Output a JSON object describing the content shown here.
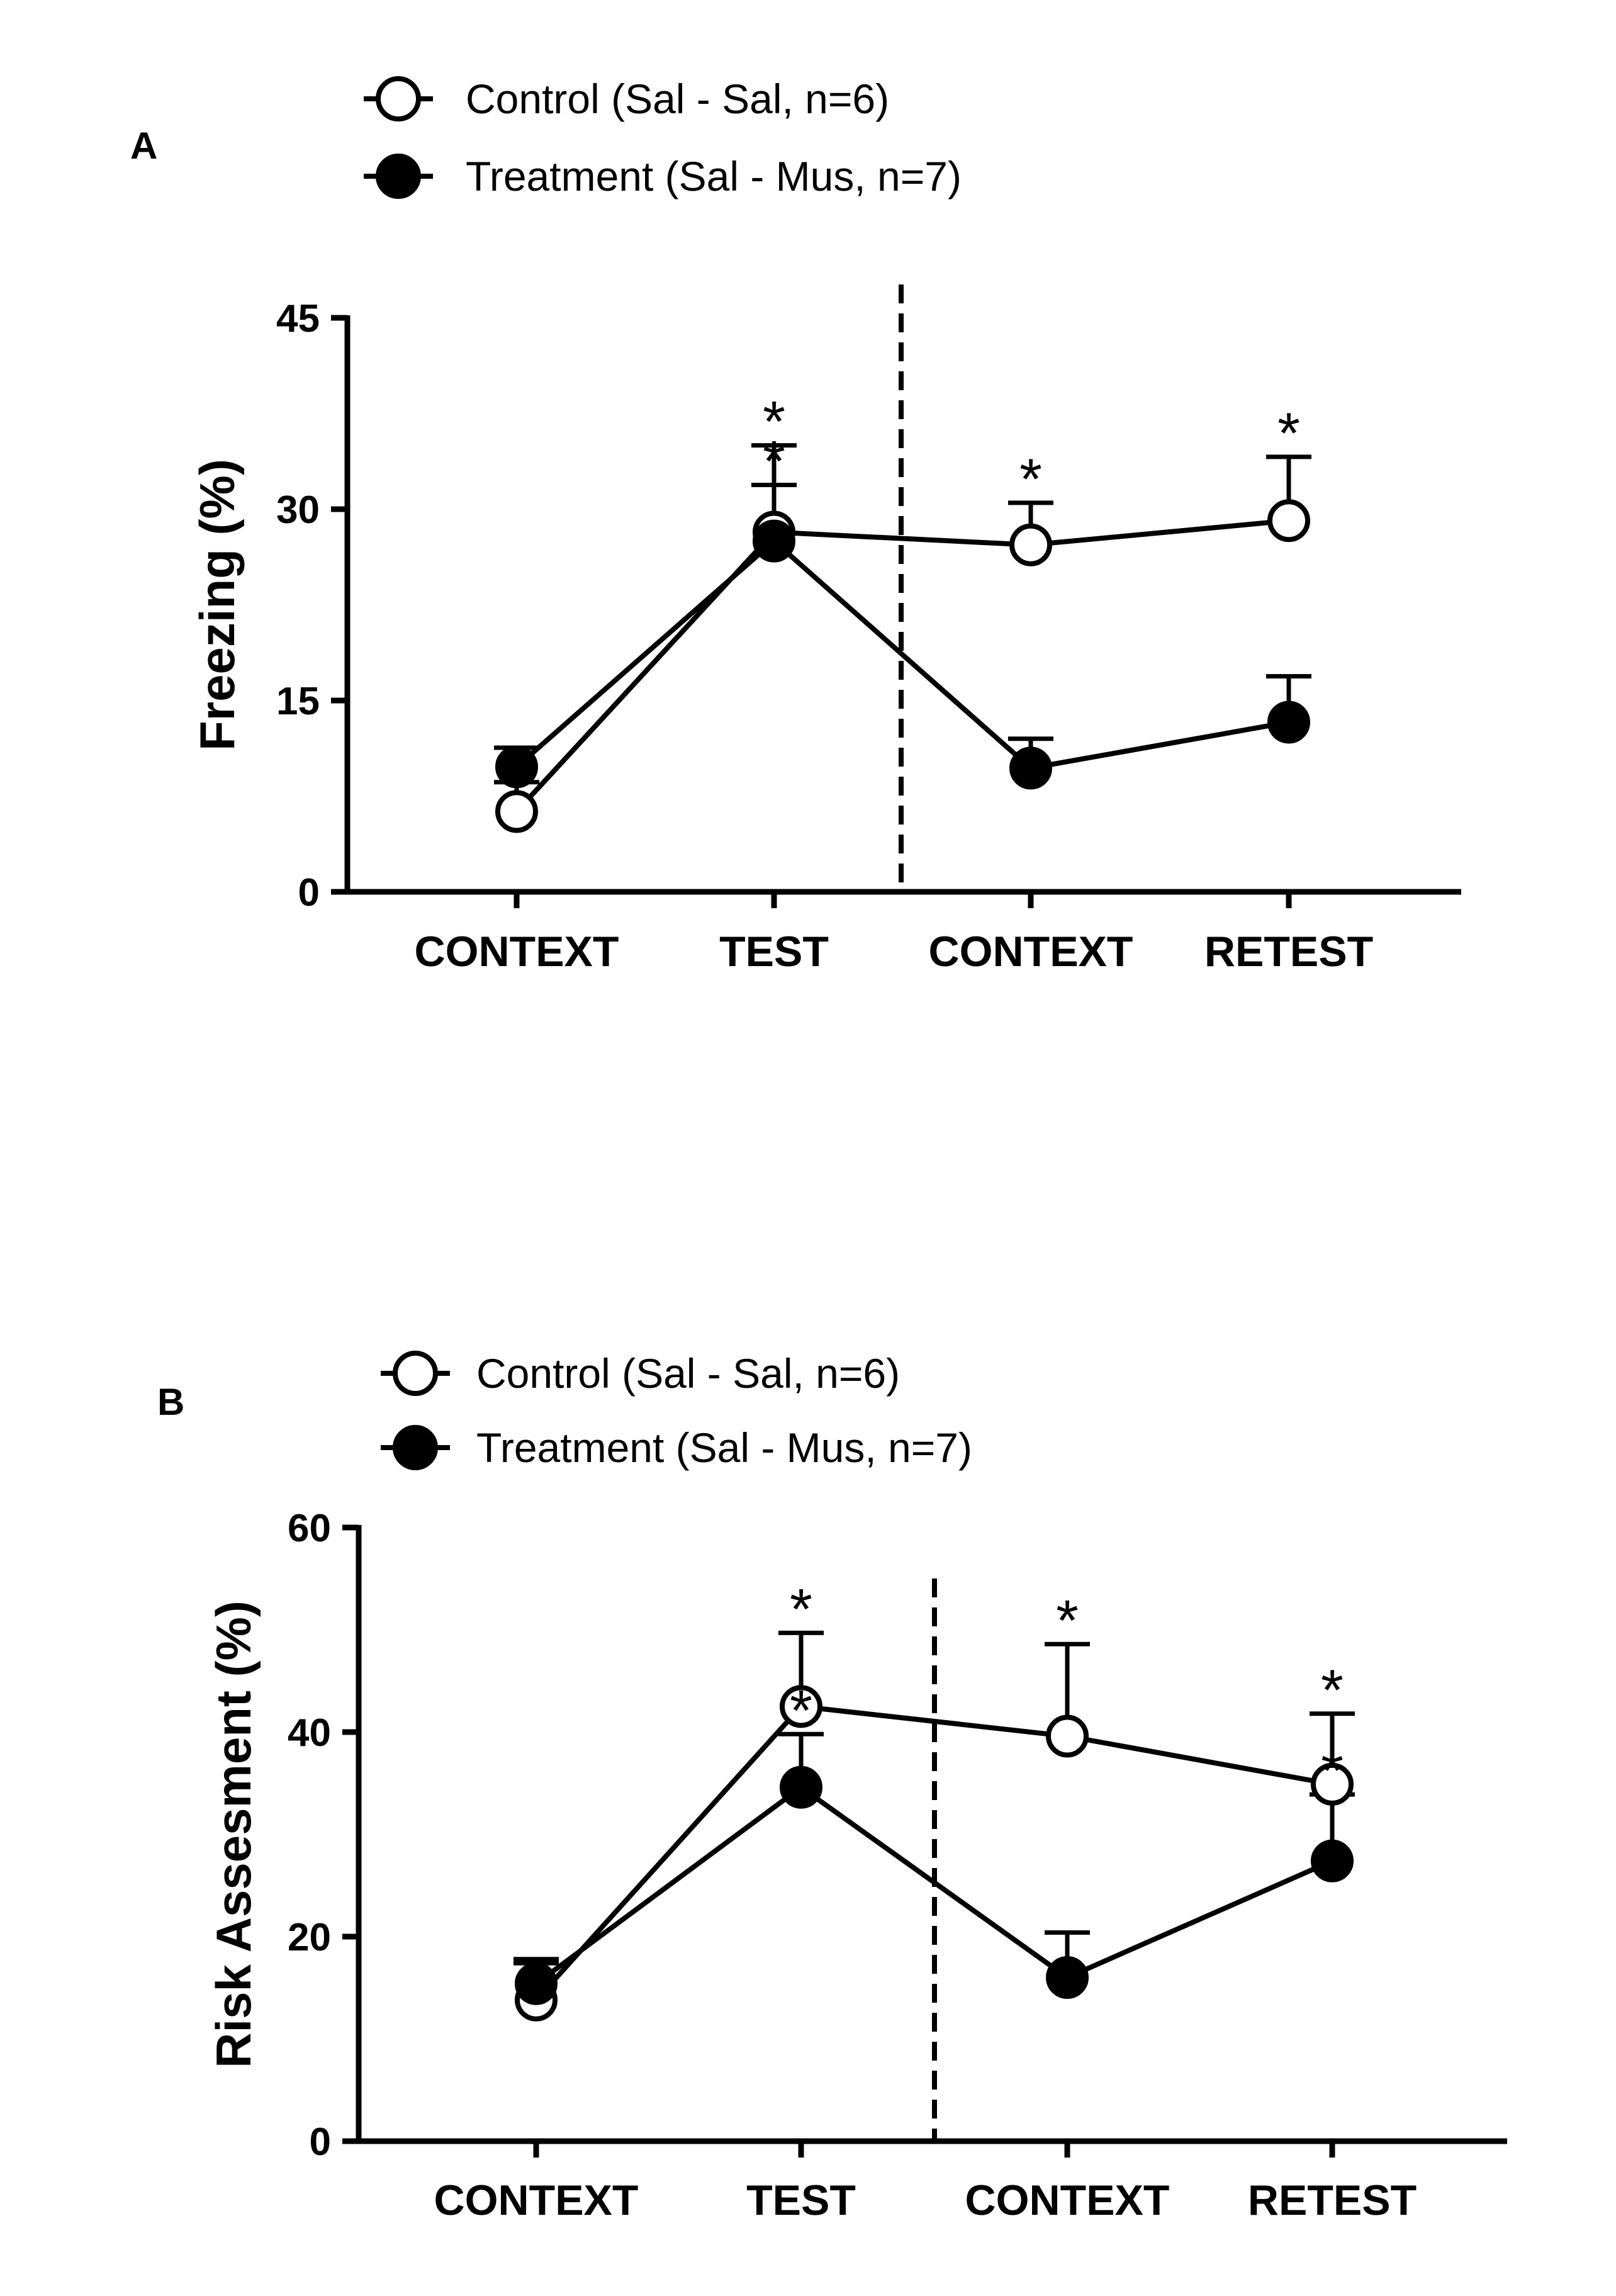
{
  "chart_data": [
    {
      "type": "line",
      "panel": "A",
      "ylabel": "Freezing (%)",
      "ylim": [
        0,
        45
      ],
      "yticks": [
        "0",
        "15",
        "30",
        "45"
      ],
      "categories": [
        "CONTEXT",
        "TEST",
        "CONTEXT",
        "RETEST"
      ],
      "series": [
        {
          "name": "Control (Sal - Sal, n=6)",
          "marker": "open-circle",
          "values": [
            6.3,
            28.2,
            27.2,
            29.1
          ],
          "errors": [
            2.3,
            6.8,
            3.3,
            5.0
          ]
        },
        {
          "name": "Treatment (Sal - Mus, n=7)",
          "marker": "filled-circle",
          "values": [
            9.8,
            27.5,
            9.7,
            13.3
          ],
          "errors": [
            1.5,
            4.4,
            2.3,
            3.6
          ]
        }
      ],
      "significance": [
        {
          "series": 0,
          "index": 1,
          "label": "*"
        },
        {
          "series": 1,
          "index": 1,
          "label": "*"
        },
        {
          "series": 0,
          "index": 2,
          "label": "*"
        },
        {
          "series": 0,
          "index": 3,
          "label": "*"
        }
      ],
      "divider_after_category": 1
    },
    {
      "type": "line",
      "panel": "B",
      "ylabel": "Risk Assesment (%)",
      "ylim": [
        0,
        60
      ],
      "yticks": [
        "0",
        "20",
        "40",
        "60"
      ],
      "categories": [
        "CONTEXT",
        "TEST",
        "CONTEXT",
        "RETEST"
      ],
      "series": [
        {
          "name": "Control (Sal - Sal, n=6)",
          "marker": "open-circle",
          "values": [
            13.8,
            42.5,
            39.6,
            34.9
          ],
          "errors": [
            4.0,
            7.2,
            9.0,
            6.9
          ]
        },
        {
          "name": "Treatment (Sal - Mus, n=7)",
          "marker": "filled-circle",
          "values": [
            15.4,
            34.6,
            16.0,
            27.4
          ],
          "errors": [
            2.0,
            5.2,
            4.4,
            6.5
          ]
        }
      ],
      "significance": [
        {
          "series": 0,
          "index": 1,
          "label": "*"
        },
        {
          "series": 1,
          "index": 1,
          "label": "*"
        },
        {
          "series": 0,
          "index": 2,
          "label": "*"
        },
        {
          "series": 0,
          "index": 3,
          "label": "*"
        },
        {
          "series": 1,
          "index": 3,
          "label": "*"
        }
      ],
      "divider_after_category": 1
    }
  ]
}
